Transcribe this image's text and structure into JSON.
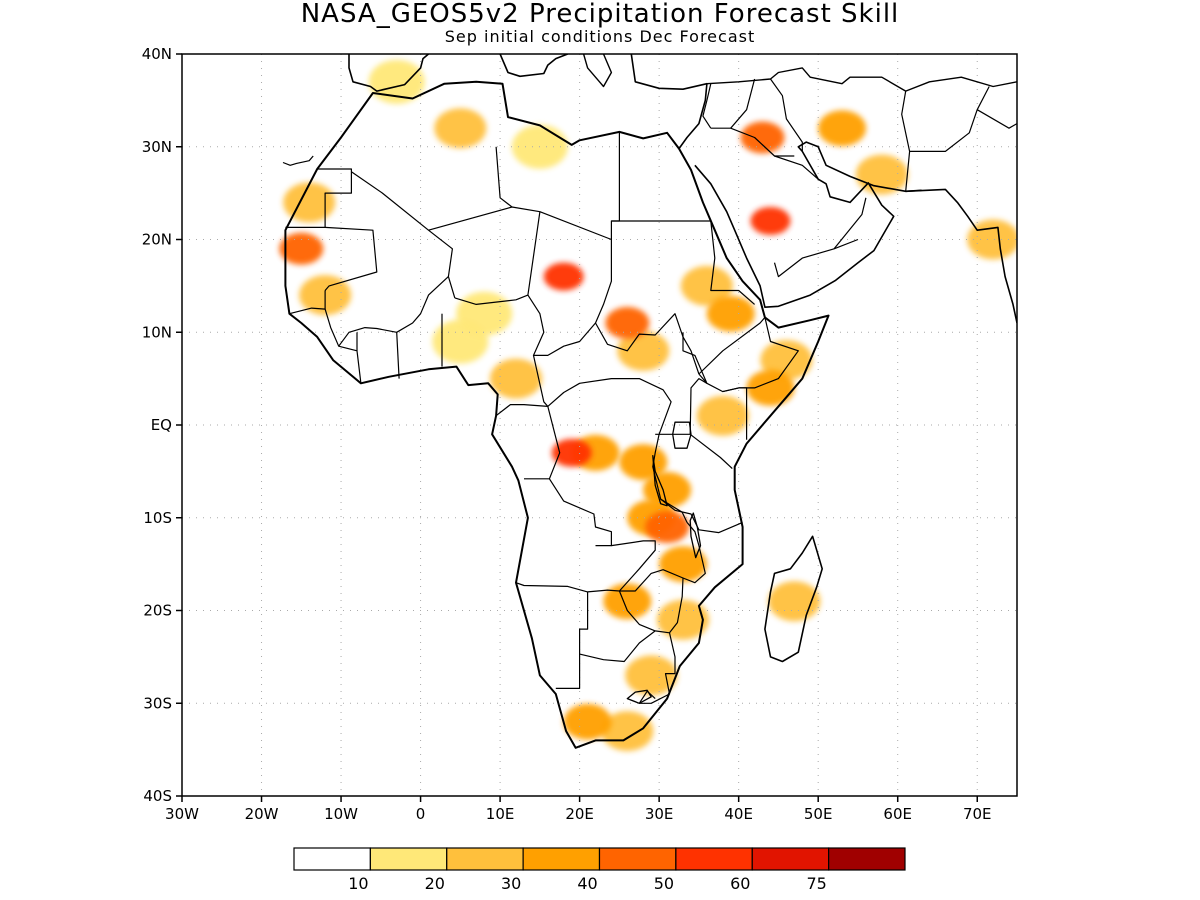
{
  "title": "NASA_GEOS5v2 Precipitation Forecast Skill",
  "subtitle": "Sep initial conditions  Dec Forecast",
  "map": {
    "lon_range": [
      -30,
      75
    ],
    "lat_range": [
      -40,
      40
    ],
    "lat_ticks": [
      {
        "value": 40,
        "label": "40N"
      },
      {
        "value": 30,
        "label": "30N"
      },
      {
        "value": 20,
        "label": "20N"
      },
      {
        "value": 10,
        "label": "10N"
      },
      {
        "value": 0,
        "label": "EQ"
      },
      {
        "value": -10,
        "label": "10S"
      },
      {
        "value": -20,
        "label": "20S"
      },
      {
        "value": -30,
        "label": "30S"
      },
      {
        "value": -40,
        "label": "40S"
      }
    ],
    "lon_ticks": [
      {
        "value": -30,
        "label": "30W"
      },
      {
        "value": -20,
        "label": "20W"
      },
      {
        "value": -10,
        "label": "10W"
      },
      {
        "value": 0,
        "label": "0"
      },
      {
        "value": 10,
        "label": "10E"
      },
      {
        "value": 20,
        "label": "20E"
      },
      {
        "value": 30,
        "label": "30E"
      },
      {
        "value": 40,
        "label": "40E"
      },
      {
        "value": 50,
        "label": "50E"
      },
      {
        "value": 60,
        "label": "60E"
      },
      {
        "value": 70,
        "label": "70E"
      }
    ],
    "grid": true
  },
  "colorbar": {
    "levels": [
      "10",
      "20",
      "30",
      "40",
      "50",
      "60",
      "75"
    ],
    "colors": [
      "#ffffff",
      "#ffe878",
      "#ffc03c",
      "#ffa000",
      "#ff6400",
      "#ff3200",
      "#e11400",
      "#a00000"
    ]
  },
  "skill_regions": [
    {
      "lon": -15,
      "lat": 19,
      "level": 4
    },
    {
      "lon": -14,
      "lat": 24,
      "level": 2
    },
    {
      "lon": -12,
      "lat": 14,
      "level": 2
    },
    {
      "lon": 5,
      "lat": 32,
      "level": 2
    },
    {
      "lon": -3,
      "lat": 37,
      "level": 1
    },
    {
      "lon": 15,
      "lat": 30,
      "level": 1
    },
    {
      "lon": 18,
      "lat": 16,
      "level": 5
    },
    {
      "lon": 26,
      "lat": 11,
      "level": 4
    },
    {
      "lon": 28,
      "lat": 8,
      "level": 2
    },
    {
      "lon": 36,
      "lat": 15,
      "level": 2
    },
    {
      "lon": 39,
      "lat": 12,
      "level": 3
    },
    {
      "lon": 44,
      "lat": 22,
      "level": 5
    },
    {
      "lon": 43,
      "lat": 31,
      "level": 4
    },
    {
      "lon": 53,
      "lat": 32,
      "level": 3
    },
    {
      "lon": 58,
      "lat": 27,
      "level": 2
    },
    {
      "lon": 72,
      "lat": 20,
      "level": 2
    },
    {
      "lon": 44,
      "lat": 4,
      "level": 3
    },
    {
      "lon": 46,
      "lat": 7,
      "level": 2
    },
    {
      "lon": 12,
      "lat": 5,
      "level": 2
    },
    {
      "lon": 5,
      "lat": 9,
      "level": 1
    },
    {
      "lon": 22,
      "lat": -3,
      "level": 3
    },
    {
      "lon": 19,
      "lat": -3,
      "level": 5
    },
    {
      "lon": 28,
      "lat": -4,
      "level": 3
    },
    {
      "lon": 31,
      "lat": -7,
      "level": 3
    },
    {
      "lon": 31,
      "lat": -11,
      "level": 4
    },
    {
      "lon": 29,
      "lat": -10,
      "level": 3
    },
    {
      "lon": 33,
      "lat": -15,
      "level": 3
    },
    {
      "lon": 26,
      "lat": -19,
      "level": 3
    },
    {
      "lon": 33,
      "lat": -21,
      "level": 2
    },
    {
      "lon": 47,
      "lat": -19,
      "level": 2
    },
    {
      "lon": 21,
      "lat": -32,
      "level": 3
    },
    {
      "lon": 26,
      "lat": -33,
      "level": 2
    },
    {
      "lon": 29,
      "lat": -27,
      "level": 2
    },
    {
      "lon": 38,
      "lat": 1,
      "level": 2
    },
    {
      "lon": 8,
      "lat": 12,
      "level": 1
    }
  ]
}
